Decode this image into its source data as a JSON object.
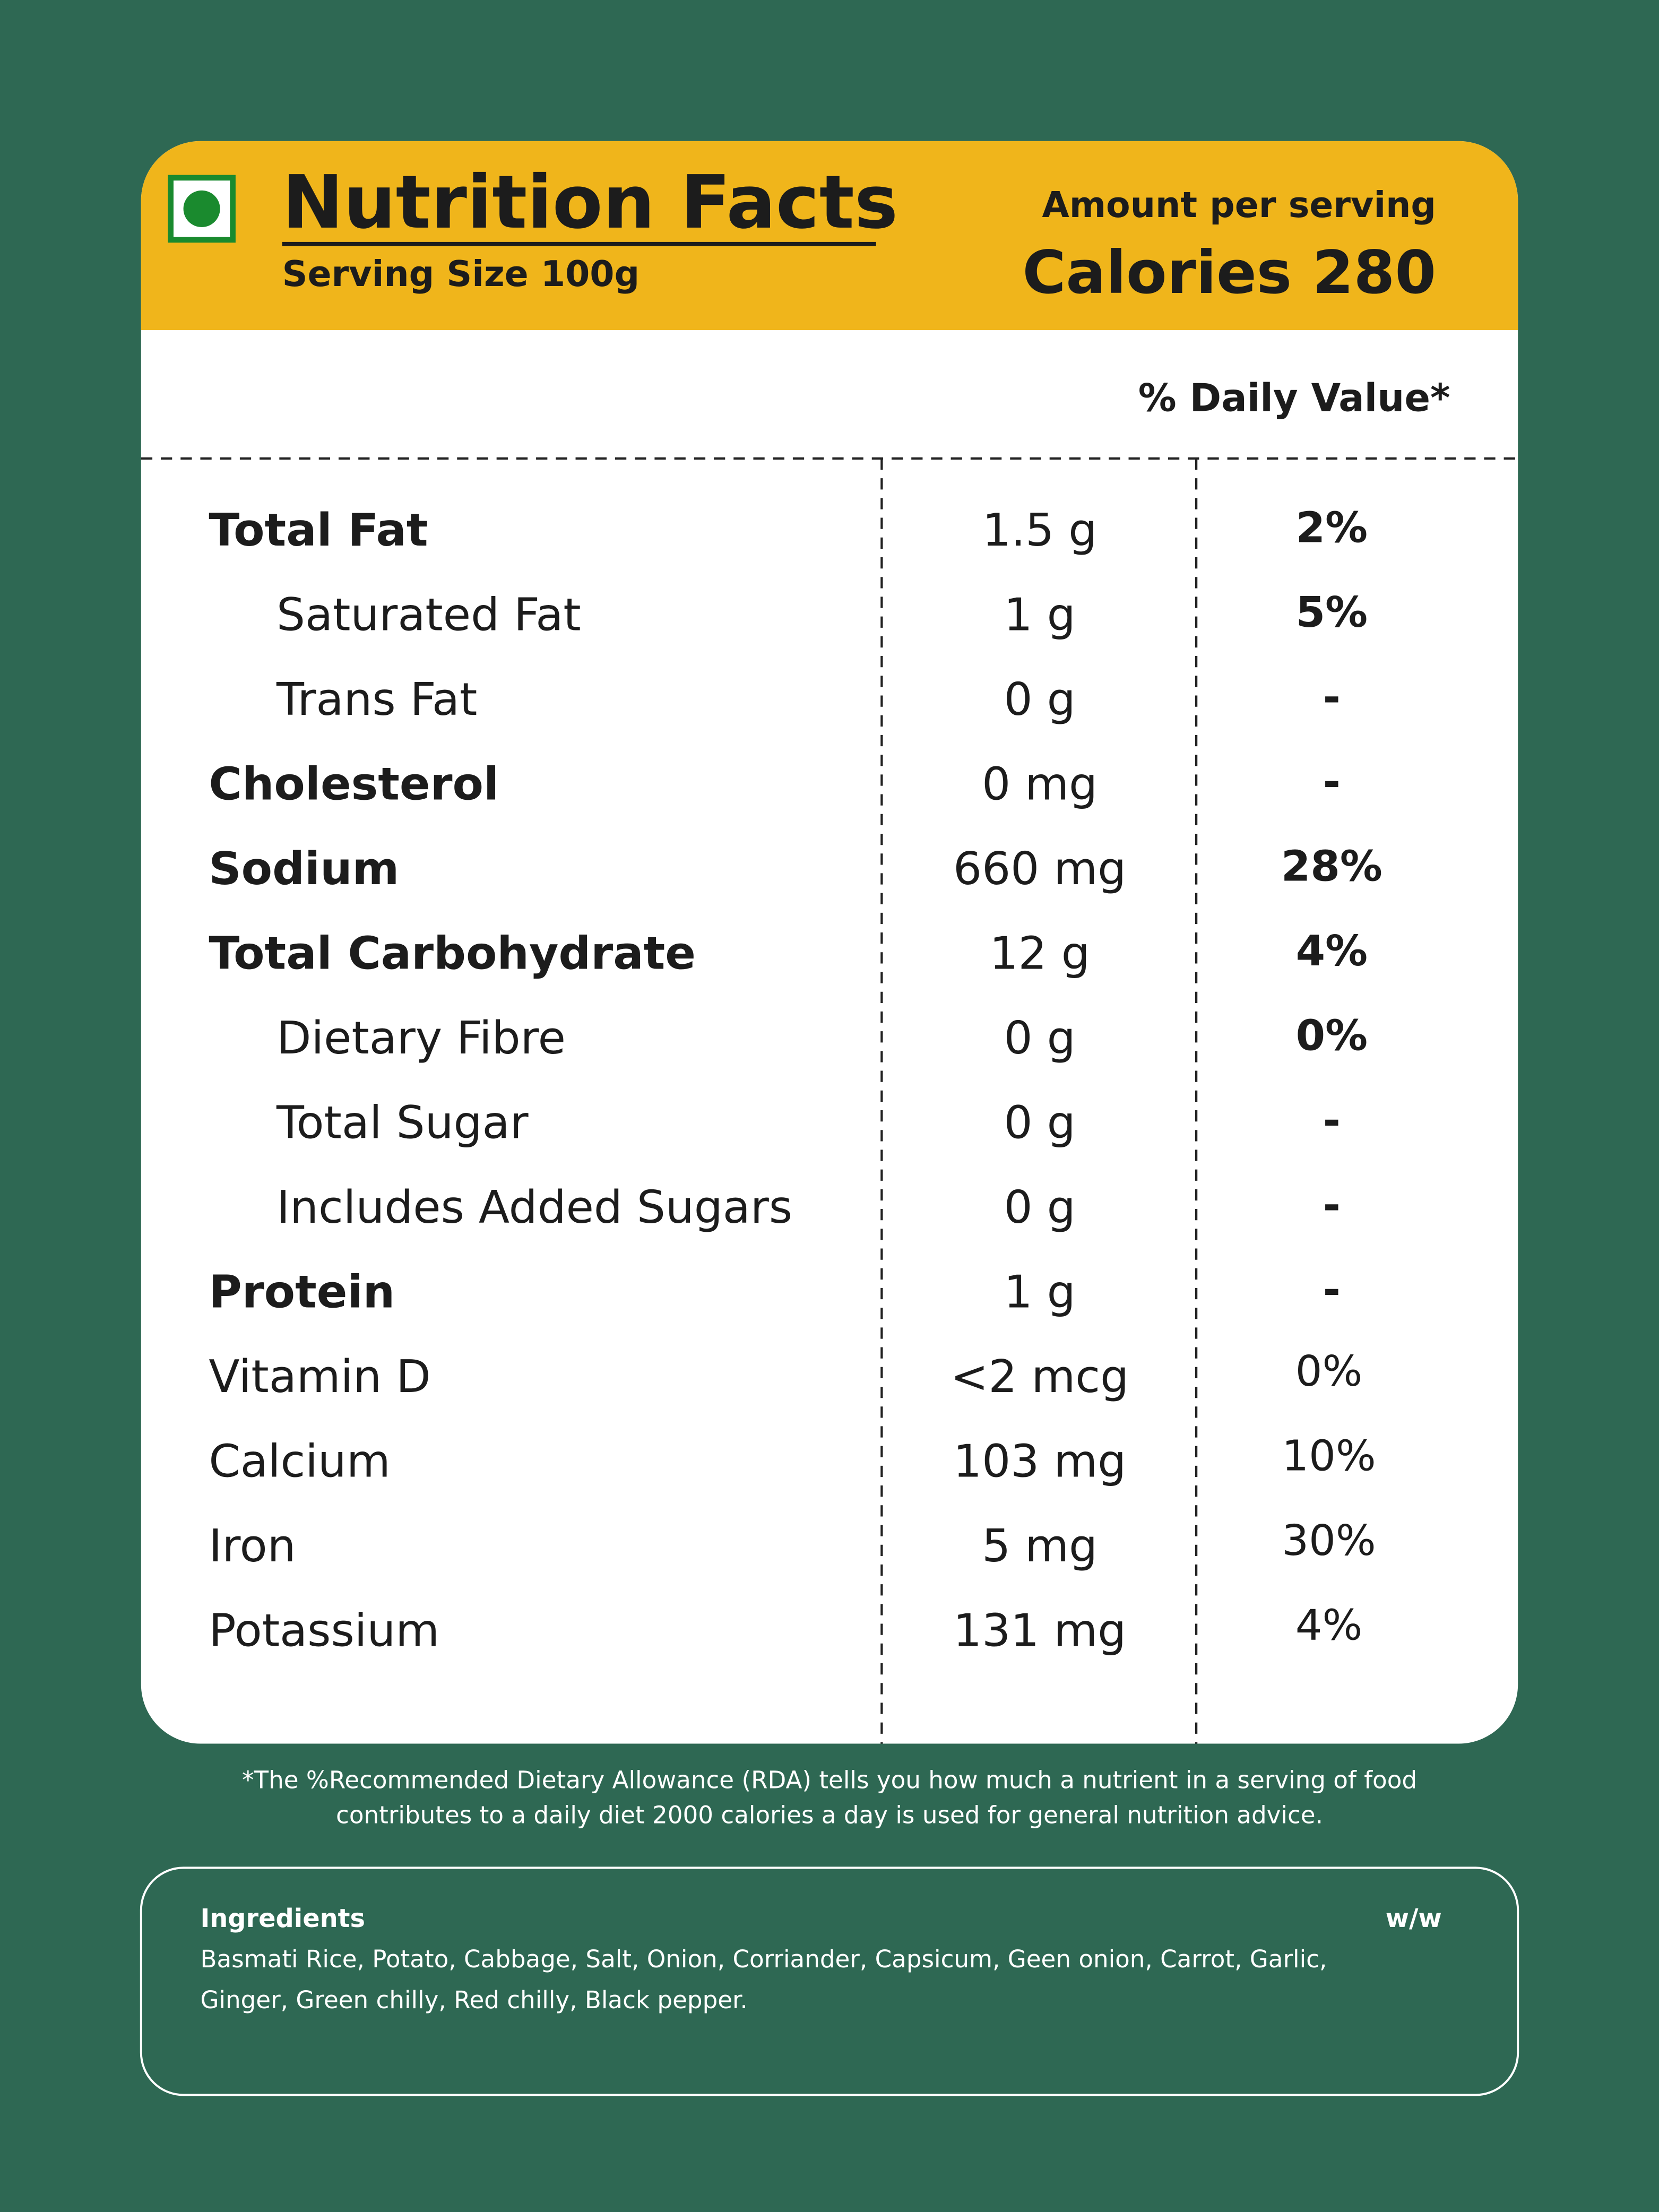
{
  "header": {
    "title": "Nutrition Facts",
    "serving_size": "Serving Size  100g",
    "amount_per_serving": "Amount per serving",
    "calories": "Calories 280"
  },
  "daily_value_heading": "% Daily Value*",
  "nutrients": [
    {
      "name": "Total Fat",
      "amount": "1.5 g",
      "daily_value": "2%",
      "indent": false
    },
    {
      "name": "Saturated Fat",
      "amount": "1 g",
      "daily_value": "5%",
      "indent": true
    },
    {
      "name": "Trans Fat",
      "amount": "0 g",
      "daily_value": "-",
      "indent": true
    },
    {
      "name": "Cholesterol",
      "amount": "0 mg",
      "daily_value": "-",
      "indent": false
    },
    {
      "name": "Sodium",
      "amount": "660 mg",
      "daily_value": "28%",
      "indent": false
    },
    {
      "name": "Total Carbohydrate",
      "amount": "12 g",
      "daily_value": "4%",
      "indent": false
    },
    {
      "name": "Dietary Fibre",
      "amount": "0 g",
      "daily_value": "0%",
      "indent": true
    },
    {
      "name": "Total Sugar",
      "amount": "0 g",
      "daily_value": "-",
      "indent": true
    },
    {
      "name": "Includes Added Sugars",
      "amount": "0 g",
      "daily_value": "-",
      "indent": true
    },
    {
      "name": "Protein",
      "amount": "1 g",
      "daily_value": "-",
      "indent": false
    }
  ],
  "vitamins_minerals": [
    {
      "name": "Vitamin D",
      "amount": "<2 mcg",
      "daily_value": "0%"
    },
    {
      "name": "Calcium",
      "amount": "103 mg",
      "daily_value": "10%"
    },
    {
      "name": "Iron",
      "amount": "5 mg",
      "daily_value": "30%"
    },
    {
      "name": "Potassium",
      "amount": "131 mg",
      "daily_value": "4%"
    }
  ],
  "footnote": [
    "*The %Recommended Dietary Allowance (RDA) tells you how much a nutrient in a serving of food",
    "contributes to a daily diet 2000 calories a day is used for general nutrition advice."
  ],
  "ingredients": {
    "heading": "Ingredients",
    "unit": "w/w",
    "lines": [
      "Basmati Rice, Potato, Cabbage, Salt, Onion, Corriander, Capsicum, Geen onion, Carrot, Garlic,",
      "Ginger, Green chilly, Red chilly, Black pepper."
    ]
  }
}
